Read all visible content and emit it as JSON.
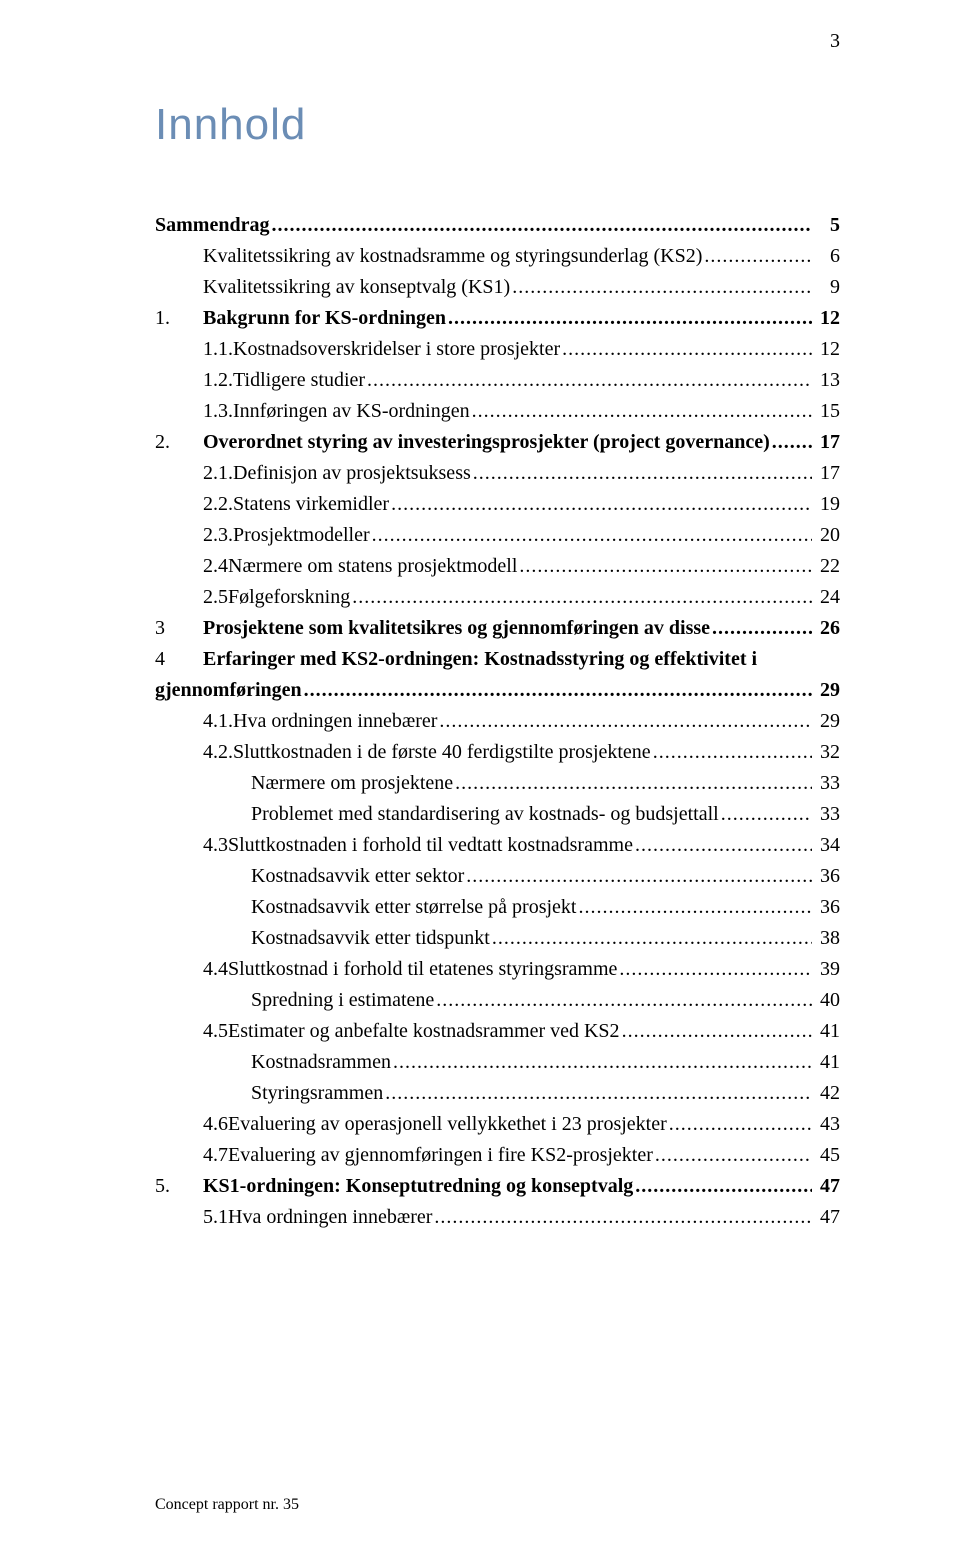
{
  "pageNumber": "3",
  "title": "Innhold",
  "footer": "Concept rapport nr. 35",
  "colors": {
    "titleColor": "#6b8db5",
    "textColor": "#000000",
    "background": "#ffffff"
  },
  "toc": [
    {
      "num": "",
      "label": "Sammendrag",
      "page": "5",
      "bold": true,
      "indent": 0
    },
    {
      "num": "",
      "label": "Kvalitetssikring av kostnadsramme og styringsunderlag (KS2)",
      "page": "6",
      "bold": false,
      "indent": 1
    },
    {
      "num": "",
      "label": "Kvalitetssikring av konseptvalg (KS1)",
      "page": "9",
      "bold": false,
      "indent": 1,
      "trailingSpace": true
    },
    {
      "num": "1.",
      "label": "Bakgrunn for KS-ordningen",
      "page": "12",
      "bold": true,
      "indent": 0
    },
    {
      "num": "1.1.",
      "label": "Kostnadsoverskridelser i store prosjekter",
      "page": "12",
      "bold": false,
      "indent": 1
    },
    {
      "num": "1.2.",
      "label": "Tidligere studier",
      "page": "13",
      "bold": false,
      "indent": 1
    },
    {
      "num": "1.3.",
      "label": "Innføringen av KS-ordningen",
      "page": "15",
      "bold": false,
      "indent": 1
    },
    {
      "num": "2.",
      "label": "Overordnet styring av investeringsprosjekter (project governance)",
      "page": "17",
      "bold": true,
      "indent": 0
    },
    {
      "num": "2.1.",
      "label": "Definisjon av prosjektsuksess",
      "page": "17",
      "bold": false,
      "indent": 1
    },
    {
      "num": "2.2.",
      "label": "Statens virkemidler",
      "page": "19",
      "bold": false,
      "indent": 1
    },
    {
      "num": "2.3.",
      "label": "Prosjektmodeller",
      "page": "20",
      "bold": false,
      "indent": 1
    },
    {
      "num": "2.4",
      "label": "Nærmere om statens prosjektmodell",
      "page": "22",
      "bold": false,
      "indent": 1
    },
    {
      "num": "2.5",
      "label": "Følgeforskning",
      "page": "24",
      "bold": false,
      "indent": 1
    },
    {
      "num": "3",
      "label": "Prosjektene som kvalitetsikres og gjennomføringen av disse",
      "page": "26",
      "bold": true,
      "indent": 0
    },
    {
      "num": "4",
      "label": "Erfaringer med KS2-ordningen: Kostnadsstyring og effektivitet i",
      "page": "",
      "bold": true,
      "indent": 0,
      "noDots": true
    },
    {
      "num": "",
      "label": "gjennomføringen",
      "page": "29",
      "bold": true,
      "indent": 0,
      "continuation": true
    },
    {
      "num": "4.1.",
      "label": "Hva ordningen innebærer",
      "page": "29",
      "bold": false,
      "indent": 1
    },
    {
      "num": "4.2.",
      "label": "Sluttkostnaden i de første 40 ferdigstilte prosjektene",
      "page": "32",
      "bold": false,
      "indent": 1
    },
    {
      "num": "",
      "label": "Nærmere om prosjektene",
      "page": "33",
      "bold": false,
      "indent": 2
    },
    {
      "num": "",
      "label": "Problemet med standardisering av kostnads- og budsjettall",
      "page": "33",
      "bold": false,
      "indent": 2
    },
    {
      "num": "4.3",
      "label": "Sluttkostnaden i forhold til vedtatt kostnadsramme",
      "page": "34",
      "bold": false,
      "indent": 1
    },
    {
      "num": "",
      "label": "Kostnadsavvik etter sektor",
      "page": "36",
      "bold": false,
      "indent": 2
    },
    {
      "num": "",
      "label": "Kostnadsavvik etter størrelse på prosjekt",
      "page": "36",
      "bold": false,
      "indent": 2
    },
    {
      "num": "",
      "label": "Kostnadsavvik etter tidspunkt",
      "page": "38",
      "bold": false,
      "indent": 2
    },
    {
      "num": "4.4",
      "label": "Sluttkostnad i forhold til etatenes styringsramme",
      "page": "39",
      "bold": false,
      "indent": 1
    },
    {
      "num": "",
      "label": "Spredning i estimatene",
      "page": "40",
      "bold": false,
      "indent": 2
    },
    {
      "num": "4.5",
      "label": "Estimater og anbefalte kostnadsrammer ved KS2",
      "page": "41",
      "bold": false,
      "indent": 1
    },
    {
      "num": "",
      "label": "Kostnadsrammen",
      "page": "41",
      "bold": false,
      "indent": 2
    },
    {
      "num": "",
      "label": "Styringsrammen",
      "page": "42",
      "bold": false,
      "indent": 2
    },
    {
      "num": "4.6",
      "label": "Evaluering av operasjonell vellykkethet i 23 prosjekter",
      "page": "43",
      "bold": false,
      "indent": 1
    },
    {
      "num": "4.7",
      "label": "Evaluering av gjennomføringen i fire KS2-prosjekter",
      "page": "45",
      "bold": false,
      "indent": 1
    },
    {
      "num": "5.",
      "label": "KS1-ordningen: Konseptutredning og konseptvalg",
      "page": "47",
      "bold": true,
      "indent": 0
    },
    {
      "num": "5.1",
      "label": "Hva ordningen innebærer",
      "page": "47",
      "bold": false,
      "indent": 1
    }
  ]
}
